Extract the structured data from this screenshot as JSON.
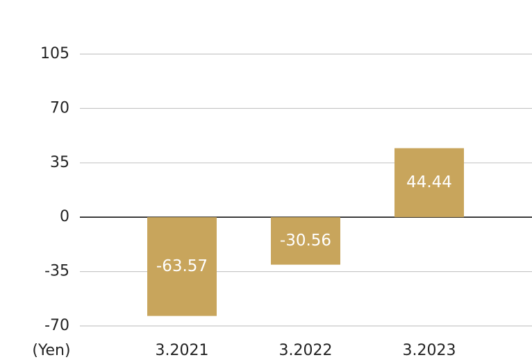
{
  "chart_data": {
    "type": "bar",
    "y_label": "(Yen)",
    "categories": [
      "3.2021",
      "3.2022",
      "3.2023"
    ],
    "values": [
      -63.57,
      -30.56,
      44.44
    ],
    "color": "#c8a55c",
    "ylim": [
      -70,
      105
    ],
    "yticks": [
      105,
      70,
      35,
      0,
      -35,
      -70
    ],
    "grid": true
  }
}
